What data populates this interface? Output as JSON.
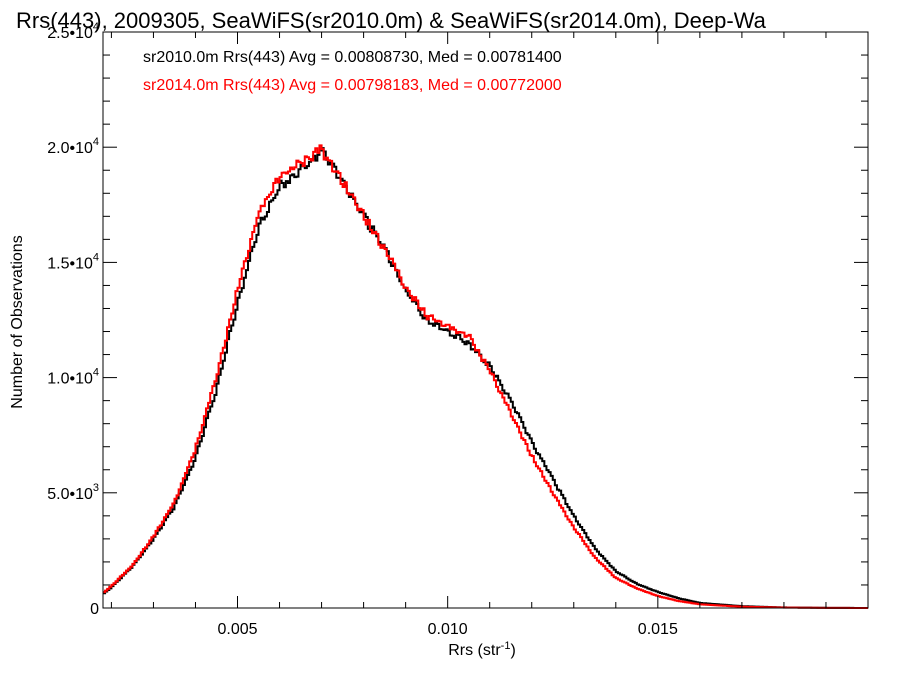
{
  "chart_data": {
    "type": "line",
    "step": true,
    "title": "Rrs(443), 2009305, SeaWiFS(sr2010.0m) & SeaWiFS(sr2014.0m), Deep-Wa",
    "xlabel": "Rrs (str",
    "xlabel_sup": "-1",
    "xlabel_end": ")",
    "ylabel": "Number of Observations",
    "xlim": [
      0.0018,
      0.02
    ],
    "ylim": [
      0,
      25000
    ],
    "x_ticks": [
      {
        "value": 0.005,
        "label": "0.005"
      },
      {
        "value": 0.01,
        "label": "0.010"
      },
      {
        "value": 0.015,
        "label": "0.015"
      }
    ],
    "y_ticks": [
      {
        "value": 0,
        "mant": "0",
        "exp": ""
      },
      {
        "value": 5000,
        "mant": "5.0•10",
        "exp": "3"
      },
      {
        "value": 10000,
        "mant": "1.0•10",
        "exp": "4"
      },
      {
        "value": 15000,
        "mant": "1.5•10",
        "exp": "4"
      },
      {
        "value": 20000,
        "mant": "2.0•10",
        "exp": "4"
      },
      {
        "value": 25000,
        "mant": "2.5•10",
        "exp": "4"
      }
    ],
    "legend": [
      {
        "text": "sr2010.0m Rrs(443) Avg = 0.00808730, Med = 0.00781400",
        "color": "#000000"
      },
      {
        "text": "sr2014.0m Rrs(443) Avg = 0.00798183, Med = 0.00772000",
        "color": "#ff0000"
      }
    ],
    "series": [
      {
        "color": "#000000",
        "x": [
          0.0018,
          0.002,
          0.0025,
          0.003,
          0.0035,
          0.004,
          0.0045,
          0.005,
          0.0055,
          0.006,
          0.0065,
          0.007,
          0.0075,
          0.008,
          0.0085,
          0.009,
          0.0095,
          0.01,
          0.0105,
          0.011,
          0.0115,
          0.012,
          0.0125,
          0.013,
          0.0135,
          0.014,
          0.0145,
          0.015,
          0.0155,
          0.016,
          0.017,
          0.018,
          0.019,
          0.02
        ],
        "y": [
          600,
          900,
          1800,
          3000,
          4400,
          6500,
          9500,
          13200,
          16500,
          18300,
          19000,
          19800,
          18500,
          17000,
          15600,
          13800,
          12500,
          12000,
          11500,
          10500,
          9000,
          7200,
          5600,
          4000,
          2600,
          1600,
          1050,
          700,
          420,
          220,
          80,
          25,
          8,
          0
        ]
      },
      {
        "color": "#ff0000",
        "x": [
          0.0018,
          0.002,
          0.0025,
          0.003,
          0.0035,
          0.004,
          0.0045,
          0.005,
          0.0055,
          0.006,
          0.0065,
          0.007,
          0.0075,
          0.008,
          0.0085,
          0.009,
          0.0095,
          0.01,
          0.0105,
          0.011,
          0.0115,
          0.012,
          0.0125,
          0.013,
          0.0135,
          0.014,
          0.0145,
          0.015,
          0.0155,
          0.016,
          0.017,
          0.018,
          0.019,
          0.02
        ],
        "y": [
          650,
          950,
          1850,
          3100,
          4600,
          6900,
          10000,
          13800,
          17100,
          18700,
          19300,
          19900,
          18500,
          17000,
          15600,
          13900,
          12700,
          12200,
          11800,
          10300,
          8500,
          6600,
          5000,
          3500,
          2200,
          1300,
          850,
          520,
          300,
          160,
          55,
          18,
          6,
          0
        ]
      }
    ]
  }
}
